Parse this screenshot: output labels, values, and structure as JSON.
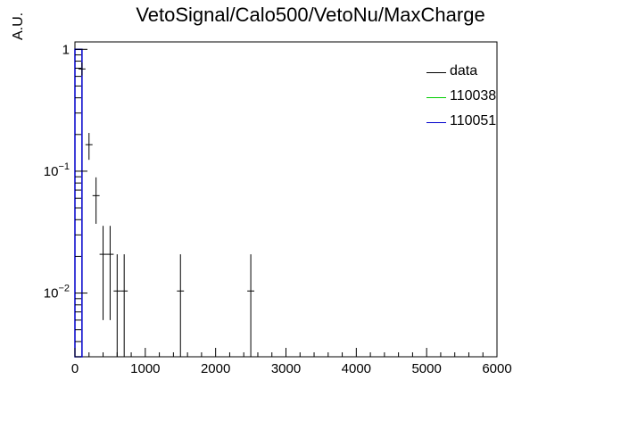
{
  "chart_data": {
    "type": "histogram",
    "title": "VetoSignal/Calo500/VetoNu/MaxCharge",
    "xlabel": "",
    "ylabel": "A.U.",
    "xlim": [
      0,
      6000
    ],
    "ylim": [
      0.003,
      1.15
    ],
    "yscale": "log",
    "x_ticks": [
      "0",
      "1000",
      "2000",
      "3000",
      "4000",
      "5000",
      "6000"
    ],
    "y_ticks": [
      {
        "value": 1,
        "label": "1"
      },
      {
        "value": 0.1,
        "label": "10^-1"
      },
      {
        "value": 0.01,
        "label": "10^-2"
      }
    ],
    "grid": false,
    "legend_position": "top-right",
    "series": [
      {
        "name": "data",
        "color": "#000000",
        "bin_width": 100,
        "points": [
          {
            "x": 100,
            "y": 0.69,
            "err_low": 0.61,
            "err_high": 0.78
          },
          {
            "x": 200,
            "y": 0.165,
            "err_low": 0.124,
            "err_high": 0.206
          },
          {
            "x": 300,
            "y": 0.063,
            "err_low": 0.037,
            "err_high": 0.089
          },
          {
            "x": 400,
            "y": 0.0208,
            "err_low": 0.006,
            "err_high": 0.0356
          },
          {
            "x": 500,
            "y": 0.0208,
            "err_low": 0.006,
            "err_high": 0.0356
          },
          {
            "x": 600,
            "y": 0.0104,
            "err_low": 0.003,
            "err_high": 0.0208
          },
          {
            "x": 700,
            "y": 0.0104,
            "err_low": 0.003,
            "err_high": 0.0208
          },
          {
            "x": 1500,
            "y": 0.0104,
            "err_low": 0.003,
            "err_high": 0.0208
          },
          {
            "x": 2500,
            "y": 0.0104,
            "err_low": 0.003,
            "err_high": 0.0208
          }
        ]
      },
      {
        "name": "110038",
        "color": "#00cc00",
        "points": []
      },
      {
        "name": "110051",
        "color": "#0000cc",
        "bin_width": 100,
        "bins": [
          {
            "x": 0,
            "y": 1.0
          }
        ]
      }
    ]
  }
}
